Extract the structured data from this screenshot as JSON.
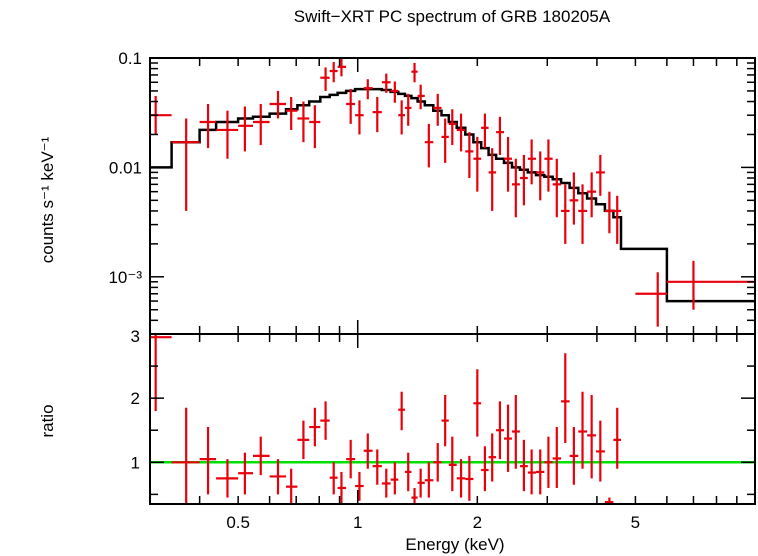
{
  "chart_data": [
    {
      "type": "scatter",
      "title": "Swift−XRT PC spectrum of GRB 180205A",
      "ylabel": "counts s⁻¹ keV⁻¹",
      "xlim": [
        0.3,
        10
      ],
      "ylim": [
        0.0003,
        0.1
      ],
      "xscale": "log",
      "yscale": "log",
      "y_ticks": [
        {
          "value": 0.1,
          "label": "0.1"
        },
        {
          "value": 0.01,
          "label": "0.01"
        },
        {
          "value": 0.001,
          "label": "10⁻³"
        }
      ],
      "colors": {
        "data": "#e8000b",
        "model": "#000000"
      },
      "data": {
        "x": [
          0.31,
          0.37,
          0.42,
          0.47,
          0.52,
          0.57,
          0.63,
          0.68,
          0.73,
          0.78,
          0.83,
          0.87,
          0.91,
          0.96,
          1.01,
          1.06,
          1.12,
          1.18,
          1.24,
          1.29,
          1.34,
          1.39,
          1.44,
          1.51,
          1.59,
          1.66,
          1.73,
          1.82,
          1.91,
          2.0,
          2.09,
          2.18,
          2.28,
          2.39,
          2.5,
          2.62,
          2.74,
          2.88,
          3.02,
          3.17,
          3.33,
          3.5,
          3.68,
          3.88,
          4.08,
          4.3,
          4.5,
          5.69,
          7.0
        ],
        "y": [
          0.03,
          0.017,
          0.026,
          0.022,
          0.024,
          0.026,
          0.038,
          0.033,
          0.028,
          0.026,
          0.066,
          0.076,
          0.083,
          0.038,
          0.03,
          0.053,
          0.032,
          0.06,
          0.05,
          0.03,
          0.035,
          0.075,
          0.045,
          0.017,
          0.035,
          0.019,
          0.025,
          0.022,
          0.014,
          0.012,
          0.023,
          0.009,
          0.021,
          0.012,
          0.007,
          0.008,
          0.012,
          0.009,
          0.012,
          0.007,
          0.004,
          0.005,
          0.004,
          0.006,
          0.009,
          0.004,
          0.004,
          0.0007,
          0.0009
        ],
        "x_low": [
          0.3,
          0.34,
          0.4,
          0.44,
          0.5,
          0.545,
          0.6,
          0.66,
          0.705,
          0.755,
          0.805,
          0.85,
          0.89,
          0.935,
          0.985,
          1.035,
          1.09,
          1.15,
          1.21,
          1.265,
          1.315,
          1.365,
          1.415,
          1.475,
          1.55,
          1.625,
          1.695,
          1.775,
          1.865,
          1.955,
          2.045,
          2.135,
          2.23,
          2.335,
          2.445,
          2.56,
          2.68,
          2.81,
          2.95,
          3.095,
          3.25,
          3.415,
          3.59,
          3.78,
          3.98,
          4.19,
          4.4,
          5.0,
          6.0
        ],
        "x_high": [
          0.34,
          0.4,
          0.44,
          0.5,
          0.545,
          0.6,
          0.66,
          0.705,
          0.755,
          0.805,
          0.85,
          0.89,
          0.935,
          0.985,
          1.035,
          1.09,
          1.15,
          1.21,
          1.265,
          1.315,
          1.365,
          1.415,
          1.475,
          1.55,
          1.625,
          1.695,
          1.775,
          1.865,
          1.955,
          2.045,
          2.135,
          2.23,
          2.335,
          2.445,
          2.56,
          2.68,
          2.81,
          2.95,
          3.095,
          3.25,
          3.415,
          3.59,
          3.78,
          3.98,
          4.19,
          4.4,
          4.6,
          6.0,
          10.0
        ],
        "y_low": [
          0.02,
          0.004,
          0.015,
          0.012,
          0.014,
          0.016,
          0.028,
          0.022,
          0.017,
          0.015,
          0.05,
          0.06,
          0.068,
          0.025,
          0.02,
          0.042,
          0.021,
          0.048,
          0.039,
          0.02,
          0.024,
          0.06,
          0.034,
          0.01,
          0.024,
          0.011,
          0.016,
          0.014,
          0.008,
          0.006,
          0.015,
          0.004,
          0.013,
          0.006,
          0.0035,
          0.0045,
          0.007,
          0.005,
          0.006,
          0.0035,
          0.002,
          0.003,
          0.002,
          0.0035,
          0.0055,
          0.0025,
          0.002,
          0.00035,
          0.0005
        ],
        "y_high": [
          0.045,
          0.028,
          0.038,
          0.033,
          0.036,
          0.038,
          0.05,
          0.044,
          0.04,
          0.037,
          0.082,
          0.092,
          0.098,
          0.052,
          0.041,
          0.064,
          0.044,
          0.072,
          0.061,
          0.041,
          0.047,
          0.09,
          0.057,
          0.025,
          0.047,
          0.028,
          0.034,
          0.031,
          0.021,
          0.019,
          0.031,
          0.015,
          0.029,
          0.019,
          0.012,
          0.013,
          0.018,
          0.014,
          0.018,
          0.012,
          0.007,
          0.009,
          0.007,
          0.009,
          0.013,
          0.006,
          0.0055,
          0.0011,
          0.0014
        ]
      },
      "model": {
        "edges": [
          0.3,
          0.34,
          0.4,
          0.44,
          0.5,
          0.545,
          0.6,
          0.66,
          0.705,
          0.755,
          0.805,
          0.85,
          0.89,
          0.935,
          0.985,
          1.035,
          1.09,
          1.15,
          1.21,
          1.265,
          1.315,
          1.365,
          1.415,
          1.475,
          1.55,
          1.625,
          1.695,
          1.775,
          1.865,
          1.955,
          2.045,
          2.135,
          2.23,
          2.335,
          2.445,
          2.56,
          2.68,
          2.81,
          2.95,
          3.095,
          3.25,
          3.415,
          3.59,
          3.78,
          3.98,
          4.19,
          4.4,
          4.6,
          6.0,
          10.0
        ],
        "values": [
          0.01,
          0.017,
          0.022,
          0.026,
          0.028,
          0.029,
          0.031,
          0.034,
          0.037,
          0.04,
          0.044,
          0.046,
          0.048,
          0.05,
          0.052,
          0.052,
          0.052,
          0.051,
          0.049,
          0.047,
          0.045,
          0.043,
          0.04,
          0.037,
          0.033,
          0.03,
          0.026,
          0.023,
          0.02,
          0.017,
          0.015,
          0.013,
          0.012,
          0.011,
          0.01,
          0.0095,
          0.009,
          0.0085,
          0.0082,
          0.0078,
          0.0072,
          0.0065,
          0.0058,
          0.0052,
          0.0046,
          0.004,
          0.0035,
          0.0018,
          0.0006
        ]
      }
    },
    {
      "type": "scatter",
      "xlabel": "Energy (keV)",
      "ylabel": "ratio",
      "xlim": [
        0.3,
        10
      ],
      "ylim": [
        0.35,
        3
      ],
      "xscale": "log",
      "reference_line": {
        "y": 1,
        "color": "#00e000"
      },
      "y_ticks": [
        {
          "value": 1,
          "label": "1"
        },
        {
          "value": 2,
          "label": "2"
        },
        {
          "value": 3,
          "label": "3"
        }
      ],
      "x_ticks": [
        {
          "value": 0.5,
          "label": "0.5"
        },
        {
          "value": 1,
          "label": "1"
        },
        {
          "value": 2,
          "label": "2"
        },
        {
          "value": 5,
          "label": "5"
        }
      ],
      "data": {
        "y": [
          2.95,
          1.0,
          1.05,
          0.75,
          0.83,
          1.1,
          0.78,
          0.62,
          1.35,
          1.55,
          1.65,
          0.76,
          0.6,
          1.05,
          0.63,
          1.18,
          0.94,
          0.67,
          0.73,
          1.82,
          0.85,
          0.45,
          0.68,
          0.72,
          1.0,
          1.65,
          0.96,
          0.75,
          0.74,
          1.92,
          0.88,
          1.08,
          1.5,
          1.37,
          1.48,
          0.94,
          0.84,
          0.85,
          1.0,
          1.06,
          1.95,
          1.1,
          1.48,
          1.42,
          1.17,
          0.38,
          1.35
        ],
        "y_low": [
          1.8,
          0.15,
          0.5,
          0.45,
          0.5,
          0.8,
          0.5,
          0.35,
          1.05,
          1.25,
          1.35,
          0.5,
          0.35,
          0.75,
          0.4,
          0.9,
          0.65,
          0.45,
          0.5,
          1.5,
          0.55,
          0.3,
          0.45,
          0.45,
          0.7,
          1.25,
          0.55,
          0.45,
          0.4,
          1.4,
          0.55,
          0.7,
          1.05,
          0.85,
          0.9,
          0.55,
          0.5,
          0.5,
          0.6,
          0.6,
          1.3,
          0.65,
          0.9,
          0.75,
          0.7,
          0.35,
          0.9
        ],
        "y_high": [
          3.0,
          1.85,
          1.55,
          1.05,
          1.15,
          1.4,
          1.05,
          0.9,
          1.65,
          1.85,
          1.95,
          1.0,
          0.85,
          1.35,
          0.85,
          1.45,
          1.2,
          0.9,
          1.0,
          2.1,
          1.15,
          0.6,
          0.9,
          1.0,
          1.3,
          2.05,
          1.4,
          1.05,
          1.1,
          2.45,
          1.25,
          1.45,
          1.95,
          1.9,
          2.05,
          1.35,
          1.2,
          1.2,
          1.4,
          1.55,
          2.7,
          1.55,
          2.1,
          2.05,
          1.65,
          0.45,
          1.85
        ]
      }
    }
  ]
}
